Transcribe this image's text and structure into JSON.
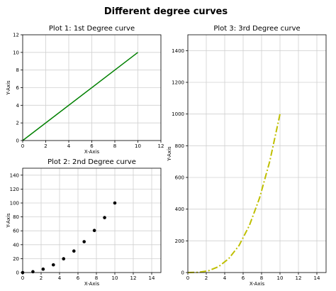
{
  "figure_title": "Different degree curves",
  "chart_data": [
    {
      "type": "line",
      "title": "Plot 1: 1st Degree curve",
      "xlabel": "X-Axis",
      "ylabel": "Y-Axis",
      "xlim": [
        0,
        12
      ],
      "ylim": [
        0,
        12
      ],
      "xticks": [
        0,
        2,
        4,
        6,
        8,
        10,
        12
      ],
      "yticks": [
        0,
        2,
        4,
        6,
        8,
        10,
        12
      ],
      "grid": true,
      "series": [
        {
          "color": "#008000",
          "style": "solid",
          "x": [
            0,
            10
          ],
          "y": [
            0,
            10
          ]
        }
      ]
    },
    {
      "type": "scatter",
      "title": "Plot 2: 2nd Degree curve",
      "xlabel": "X-Axis",
      "ylabel": "Y-Axis",
      "xlim": [
        0,
        15
      ],
      "ylim": [
        0,
        150
      ],
      "xticks": [
        0,
        2,
        4,
        6,
        8,
        10,
        12,
        14
      ],
      "yticks": [
        0,
        20,
        40,
        60,
        80,
        100,
        120,
        140
      ],
      "grid": true,
      "series": [
        {
          "color": "#000000",
          "marker": "circle",
          "x": [
            0,
            1.11,
            2.22,
            3.33,
            4.44,
            5.56,
            6.67,
            7.78,
            8.89,
            10
          ],
          "y": [
            0,
            1.2,
            4.9,
            11.1,
            19.8,
            30.9,
            44.4,
            60.5,
            79.0,
            100
          ]
        }
      ]
    },
    {
      "type": "line",
      "title": "Plot 3: 3rd Degree curve",
      "xlabel": "X-Axis",
      "ylabel": "Y-Axis",
      "xlim": [
        0,
        15
      ],
      "ylim": [
        0,
        1500
      ],
      "xticks": [
        0,
        2,
        4,
        6,
        8,
        10,
        12,
        14
      ],
      "yticks": [
        0,
        200,
        400,
        600,
        800,
        1000,
        1200,
        1400
      ],
      "grid": true,
      "series": [
        {
          "color": "#bfbf00",
          "style": "dashdot",
          "x": [
            0,
            1.11,
            2.22,
            3.33,
            4.44,
            5.56,
            6.67,
            7.78,
            8.89,
            10
          ],
          "y": [
            0,
            1.4,
            11,
            37,
            88,
            171,
            296,
            470,
            702,
            1000
          ]
        }
      ]
    }
  ]
}
